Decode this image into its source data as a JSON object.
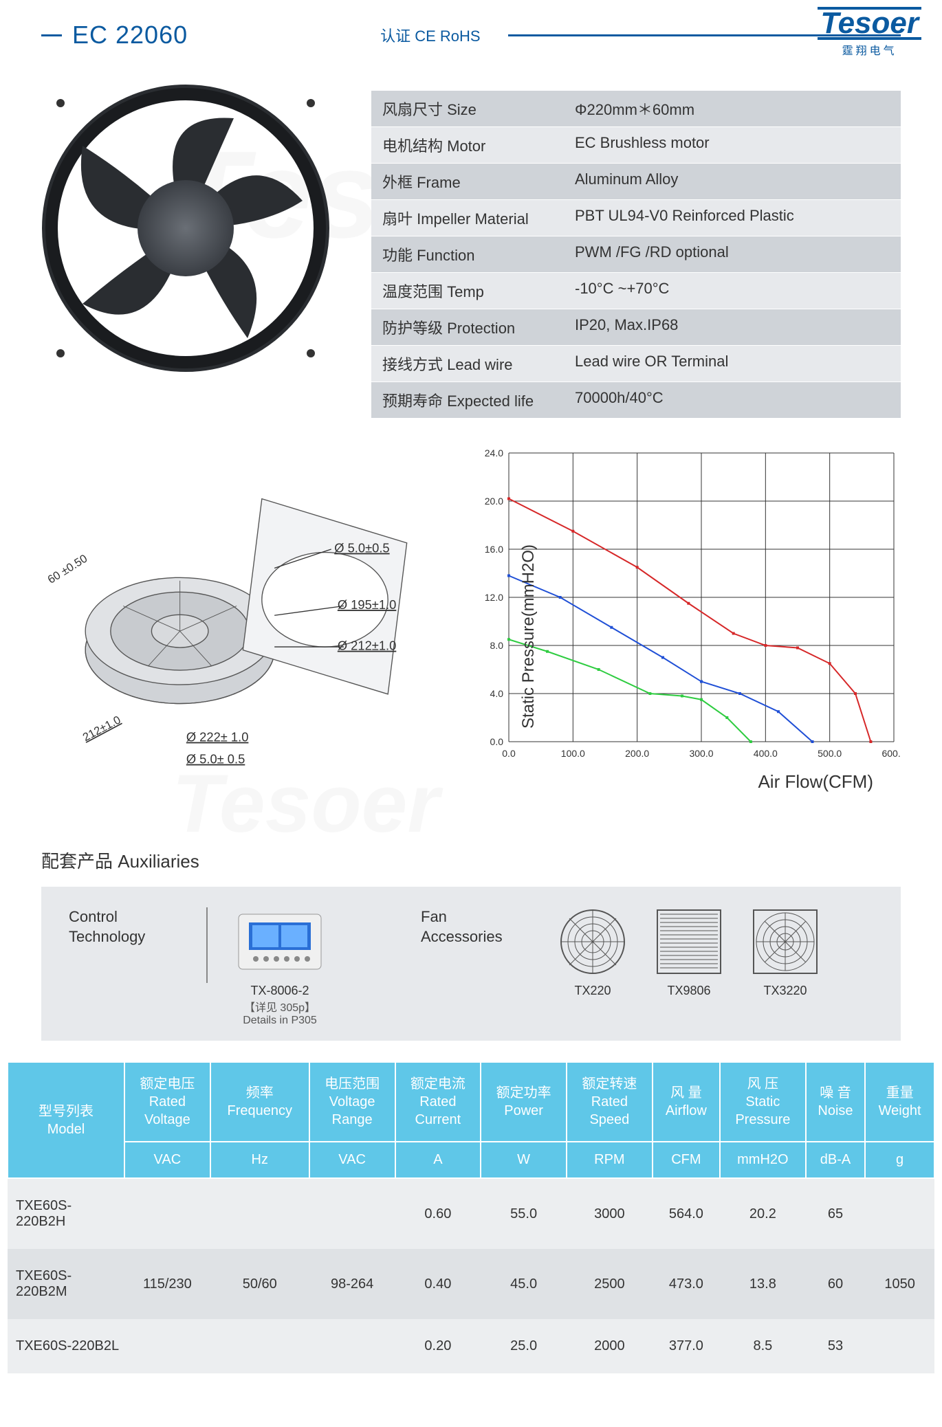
{
  "header": {
    "model": "EC 22060",
    "cert": "认证 CE RoHS",
    "logo_text": "Tesoer",
    "logo_sub": "霆翔电气"
  },
  "specs": {
    "row_bg_odd": "#cfd3d8",
    "row_bg_even": "#e7e9ec",
    "rows": [
      {
        "label": "风扇尺寸 Size",
        "value": "Φ220mm＊60mm"
      },
      {
        "label": "电机结构 Motor",
        "value": "EC Brushless motor"
      },
      {
        "label": "外框 Frame",
        "value": "Aluminum Alloy"
      },
      {
        "label": "扇叶 Impeller Material",
        "value": "PBT UL94-V0 Reinforced Plastic"
      },
      {
        "label": "功能 Function",
        "value": "PWM /FG /RD optional"
      },
      {
        "label": "温度范围 Temp",
        "value": "-10°C ~+70°C"
      },
      {
        "label": "防护等级 Protection",
        "value": "IP20, Max.IP68"
      },
      {
        "label": "接线方式 Lead wire",
        "value": "Lead wire OR Terminal"
      },
      {
        "label": "预期寿命 Expected life",
        "value": "70000h/40°C"
      }
    ]
  },
  "drawing": {
    "dims": {
      "depth": "60 ±0.50",
      "hole1": "Ø 5.0±0.5",
      "inner": "Ø 195±1.0",
      "ring": "Ø 212±1.0",
      "outer": "Ø 222± 1.0",
      "hole2": "Ø 5.0± 0.5",
      "diag1": "212±1.0"
    },
    "colors": {
      "stroke": "#555555",
      "fill": "#bfc3c8"
    }
  },
  "chart": {
    "type": "line",
    "ylabel": "Static Pressure(mmH2O)",
    "xlabel": "Air Flow(CFM)",
    "xlim": [
      0,
      600
    ],
    "xtick_step": 100,
    "ylim": [
      0,
      24
    ],
    "ytick_step": 4,
    "ytick_labels": [
      "0.0",
      "4.0",
      "8.0",
      "12.0",
      "16.0",
      "20.0",
      "24.0"
    ],
    "xtick_labels": [
      "0.0",
      "100.0",
      "200.0",
      "300.0",
      "400.0",
      "500.0",
      "600.0"
    ],
    "grid_color": "#333333",
    "background_color": "#ffffff",
    "tick_fontsize": 14,
    "label_fontsize": 24,
    "series": [
      {
        "color": "#d62728",
        "width": 2,
        "points": [
          [
            0,
            20.2
          ],
          [
            100,
            17.5
          ],
          [
            200,
            14.5
          ],
          [
            280,
            11.5
          ],
          [
            350,
            9.0
          ],
          [
            400,
            8.0
          ],
          [
            450,
            7.8
          ],
          [
            500,
            6.5
          ],
          [
            540,
            4.0
          ],
          [
            564,
            0
          ]
        ]
      },
      {
        "color": "#1f4fd6",
        "width": 2,
        "points": [
          [
            0,
            13.8
          ],
          [
            80,
            12.0
          ],
          [
            160,
            9.5
          ],
          [
            240,
            7.0
          ],
          [
            300,
            5.0
          ],
          [
            360,
            4.0
          ],
          [
            420,
            2.5
          ],
          [
            473,
            0
          ]
        ]
      },
      {
        "color": "#2ecc40",
        "width": 2,
        "points": [
          [
            0,
            8.5
          ],
          [
            60,
            7.5
          ],
          [
            140,
            6.0
          ],
          [
            220,
            4.0
          ],
          [
            270,
            3.8
          ],
          [
            300,
            3.5
          ],
          [
            340,
            2.0
          ],
          [
            377,
            0
          ]
        ]
      }
    ]
  },
  "aux": {
    "title": "配套产品 Auxiliaries",
    "control_label": "Control\nTechnology",
    "control_items": [
      {
        "name": "TX-8006-2",
        "sub": "【详见 305p】\nDetails in P305"
      }
    ],
    "acc_label": "Fan\nAccessories",
    "acc_items": [
      {
        "name": "TX220"
      },
      {
        "name": "TX9806"
      },
      {
        "name": "TX3220"
      }
    ]
  },
  "table": {
    "header_bg": "#5fc7e8",
    "header_fg": "#ffffff",
    "row_bg_odd": "#eceef0",
    "row_bg_even": "#dfe2e5",
    "columns": [
      {
        "label": "型号列表\nModel",
        "unit": ""
      },
      {
        "label": "额定电压\nRated\nVoltage",
        "unit": "VAC"
      },
      {
        "label": "频率\nFrequency",
        "unit": "Hz"
      },
      {
        "label": "电压范围\nVoltage\nRange",
        "unit": "VAC"
      },
      {
        "label": "额定电流\nRated\nCurrent",
        "unit": "A"
      },
      {
        "label": "额定功率\nPower",
        "unit": "W"
      },
      {
        "label": "额定转速\nRated\nSpeed",
        "unit": "RPM"
      },
      {
        "label": "风 量\nAirflow",
        "unit": "CFM"
      },
      {
        "label": "风 压\nStatic\nPressure",
        "unit": "mmH2O"
      },
      {
        "label": "噪 音\nNoise",
        "unit": "dB-A"
      },
      {
        "label": "重量\nWeight",
        "unit": "g"
      }
    ],
    "rows": [
      [
        "TXE60S-220B2H",
        "",
        "",
        "",
        "0.60",
        "55.0",
        "3000",
        "564.0",
        "20.2",
        "65",
        ""
      ],
      [
        "TXE60S-220B2M",
        "115/230",
        "50/60",
        "98-264",
        "0.40",
        "45.0",
        "2500",
        "473.0",
        "13.8",
        "60",
        "1050"
      ],
      [
        "TXE60S-220B2L",
        "",
        "",
        "",
        "0.20",
        "25.0",
        "2000",
        "377.0",
        "8.5",
        "53",
        ""
      ]
    ]
  }
}
